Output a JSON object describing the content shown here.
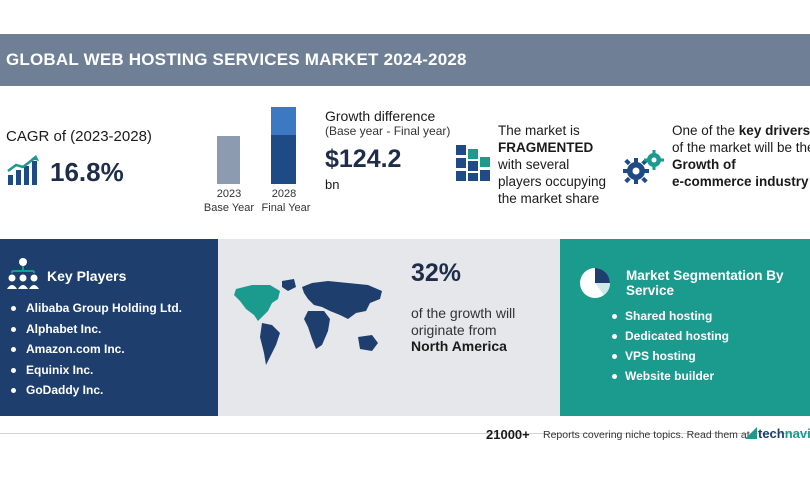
{
  "header": {
    "title": "GLOBAL WEB HOSTING SERVICES MARKET 2024-2028"
  },
  "cagr": {
    "label": "CAGR of (2023-2028)",
    "value": "16.8%",
    "icon": "growth-chart-icon"
  },
  "growth_chart": {
    "bars": [
      {
        "year": "2023",
        "label": "Base Year"
      },
      {
        "year": "2028",
        "label": "Final Year"
      }
    ]
  },
  "growth": {
    "label": "Growth difference",
    "sublabel": "(Base year - Final year)",
    "value": "$124.2",
    "unit": "bn"
  },
  "market": {
    "line1": "The market is",
    "emph": "FRAGMENTED",
    "line3": "with several",
    "line4": "players occupying",
    "line5": "the market share",
    "icon": "fragmented-blocks-icon"
  },
  "drivers": {
    "line1_pre": "One of the ",
    "line1_bold": "key drivers",
    "line2": "of the market will be the",
    "line3": "Growth of",
    "line4": "e-commerce industry",
    "icon": "gears-icon"
  },
  "key_players": {
    "title": "Key Players",
    "icon": "people-network-icon",
    "items": [
      "Alibaba Group Holding Ltd.",
      "Alphabet Inc.",
      "Amazon.com Inc.",
      "Equinix Inc.",
      "GoDaddy Inc."
    ]
  },
  "region": {
    "percent": "32%",
    "line1": "of the growth will",
    "line2": "originate from",
    "name": "North America",
    "highlight_color": "#1b9a8e"
  },
  "segmentation": {
    "title": "Market Segmentation By Service",
    "icon": "pie-chart-icon",
    "items": [
      "Shared hosting",
      "Dedicated hosting",
      "VPS hosting",
      "Website builder"
    ]
  },
  "footer": {
    "count": "21000+",
    "text": "Reports covering niche topics. Read them at",
    "brand_a": "tech",
    "brand_b": "navi"
  },
  "colors": {
    "title_bar": "#6f7f95",
    "navy": "#1e3f6e",
    "teal": "#1b9a8e",
    "map_bg": "#e5e7ea"
  }
}
